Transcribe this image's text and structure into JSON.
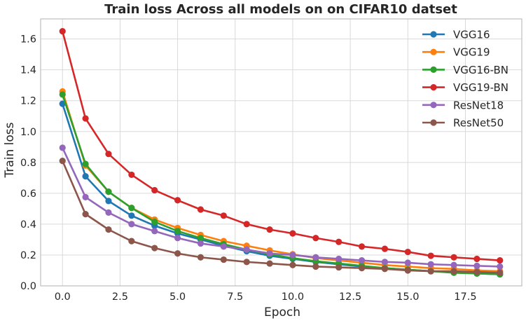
{
  "chart_data": {
    "type": "line",
    "title": "Train loss Across all models on on CIFAR10 datset",
    "xlabel": "Epoch",
    "ylabel": "Train loss",
    "xlim": [
      -0.95,
      19.95
    ],
    "ylim": [
      0.0,
      1.73
    ],
    "xticks": [
      0.0,
      2.5,
      5.0,
      7.5,
      10.0,
      12.5,
      15.0,
      17.5
    ],
    "xtick_labels": [
      "0.0",
      "2.5",
      "5.0",
      "7.5",
      "10.0",
      "12.5",
      "15.0",
      "17.5"
    ],
    "yticks": [
      0.0,
      0.2,
      0.4,
      0.6,
      0.8,
      1.0,
      1.2,
      1.4,
      1.6
    ],
    "ytick_labels": [
      "0.0",
      "0.2",
      "0.4",
      "0.6",
      "0.8",
      "1.0",
      "1.2",
      "1.4",
      "1.6"
    ],
    "grid": true,
    "legend_position": "top-right",
    "x": [
      0,
      1,
      2,
      3,
      4,
      5,
      6,
      7,
      8,
      9,
      10,
      11,
      12,
      13,
      14,
      15,
      16,
      17,
      18,
      19
    ],
    "series": [
      {
        "name": "VGG16",
        "color": "#1f77b4",
        "values": [
          1.18,
          0.71,
          0.55,
          0.455,
          0.39,
          0.34,
          0.3,
          0.26,
          0.225,
          0.195,
          0.175,
          0.155,
          0.14,
          0.125,
          0.115,
          0.105,
          0.095,
          0.09,
          0.08,
          0.075
        ]
      },
      {
        "name": "VGG19",
        "color": "#ff7f0e",
        "values": [
          1.26,
          0.78,
          0.61,
          0.505,
          0.43,
          0.375,
          0.33,
          0.29,
          0.26,
          0.23,
          0.205,
          0.18,
          0.165,
          0.15,
          0.135,
          0.125,
          0.115,
          0.11,
          0.1,
          0.095
        ]
      },
      {
        "name": "VGG16-BN",
        "color": "#2ca02c",
        "values": [
          1.24,
          0.79,
          0.61,
          0.505,
          0.415,
          0.355,
          0.31,
          0.27,
          0.235,
          0.205,
          0.18,
          0.16,
          0.145,
          0.13,
          0.115,
          0.105,
          0.095,
          0.085,
          0.08,
          0.075
        ]
      },
      {
        "name": "VGG19-BN",
        "color": "#d62728",
        "values": [
          1.65,
          1.085,
          0.855,
          0.72,
          0.62,
          0.555,
          0.495,
          0.455,
          0.4,
          0.365,
          0.34,
          0.31,
          0.285,
          0.255,
          0.24,
          0.22,
          0.195,
          0.185,
          0.175,
          0.165
        ]
      },
      {
        "name": "ResNet18",
        "color": "#9467bd",
        "values": [
          0.895,
          0.575,
          0.475,
          0.4,
          0.355,
          0.31,
          0.275,
          0.255,
          0.235,
          0.21,
          0.2,
          0.185,
          0.175,
          0.165,
          0.155,
          0.15,
          0.14,
          0.135,
          0.13,
          0.125
        ]
      },
      {
        "name": "ResNet50",
        "color": "#8c564b",
        "values": [
          0.81,
          0.465,
          0.365,
          0.29,
          0.245,
          0.21,
          0.185,
          0.17,
          0.155,
          0.145,
          0.135,
          0.125,
          0.12,
          0.115,
          0.11,
          0.1,
          0.095,
          0.095,
          0.09,
          0.085
        ]
      }
    ]
  }
}
